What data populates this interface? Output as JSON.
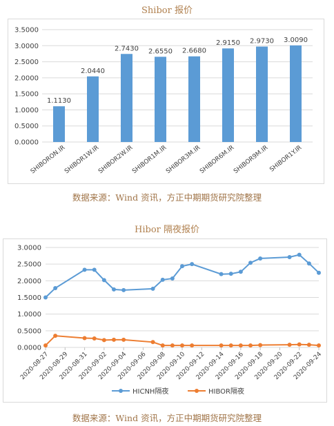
{
  "charts": {
    "shibor": {
      "title": "Shibor 报价",
      "source": "数据来源：Wind 资讯，方正中期期货研究院整理"
    },
    "hibor": {
      "title": "Hibor 隔夜报价",
      "source": "数据来源：Wind 资讯，方正中期期货研究院整理"
    }
  },
  "chart_data": [
    {
      "type": "bar",
      "title": "Shibor 报价",
      "categories": [
        "SHIBORON.IR",
        "SHIBOR1W.IR",
        "SHIBOR2W.IR",
        "SHIBOR1M.IR",
        "SHIBOR3M.IR",
        "SHIBOR6M.IR",
        "SHIBOR9M.IR",
        "SHIBOR1Y.IR"
      ],
      "values": [
        1.113,
        2.044,
        2.743,
        2.655,
        2.668,
        2.915,
        2.973,
        3.009
      ],
      "value_labels": [
        "1.1130",
        "2.0440",
        "2.7430",
        "2.6550",
        "2.6680",
        "2.9150",
        "2.9730",
        "3.0090"
      ],
      "ylim": [
        0,
        3.5
      ],
      "yticks": [
        "0.0000",
        "0.5000",
        "1.0000",
        "1.5000",
        "2.0000",
        "2.5000",
        "3.0000",
        "3.5000"
      ],
      "grid": true,
      "color": "#5b9bd5"
    },
    {
      "type": "line",
      "title": "Hibor 隔夜报价",
      "x": [
        "2020-08-27",
        "2020-08-28",
        "2020-08-31",
        "2020-09-01",
        "2020-09-02",
        "2020-09-03",
        "2020-09-04",
        "2020-09-07",
        "2020-09-08",
        "2020-09-09",
        "2020-09-10",
        "2020-09-11",
        "2020-09-14",
        "2020-09-15",
        "2020-09-16",
        "2020-09-17",
        "2020-09-18",
        "2020-09-21",
        "2020-09-22",
        "2020-09-23",
        "2020-09-24"
      ],
      "x_ticks": [
        "2020-08-27",
        "2020-08-29",
        "2020-08-31",
        "2020-09-02",
        "2020-09-04",
        "2020-09-06",
        "2020-09-08",
        "2020-09-10",
        "2020-09-12",
        "2020-09-14",
        "2020-09-16",
        "2020-09-18",
        "2020-09-20",
        "2020-09-22",
        "2020-09-24"
      ],
      "series": [
        {
          "name": "HICNH隔夜",
          "color": "#5b9bd5",
          "values": [
            1.5,
            1.78,
            2.33,
            2.33,
            2.02,
            1.74,
            1.72,
            1.76,
            2.03,
            2.07,
            2.44,
            2.5,
            2.2,
            2.21,
            2.27,
            2.54,
            2.67,
            2.71,
            2.78,
            2.52,
            2.24
          ]
        },
        {
          "name": "HIBOR隔夜",
          "color": "#ed7d31",
          "values": [
            0.06,
            0.35,
            0.28,
            0.27,
            0.22,
            0.23,
            0.23,
            0.16,
            0.06,
            0.06,
            0.06,
            0.06,
            0.06,
            0.06,
            0.06,
            0.06,
            0.07,
            0.08,
            0.09,
            0.08,
            0.06
          ]
        }
      ],
      "ylim": [
        0,
        3.0
      ],
      "yticks": [
        "0.0000",
        "0.5000",
        "1.0000",
        "1.5000",
        "2.0000",
        "2.5000",
        "3.0000"
      ],
      "grid": true,
      "legend": "bottom"
    }
  ]
}
